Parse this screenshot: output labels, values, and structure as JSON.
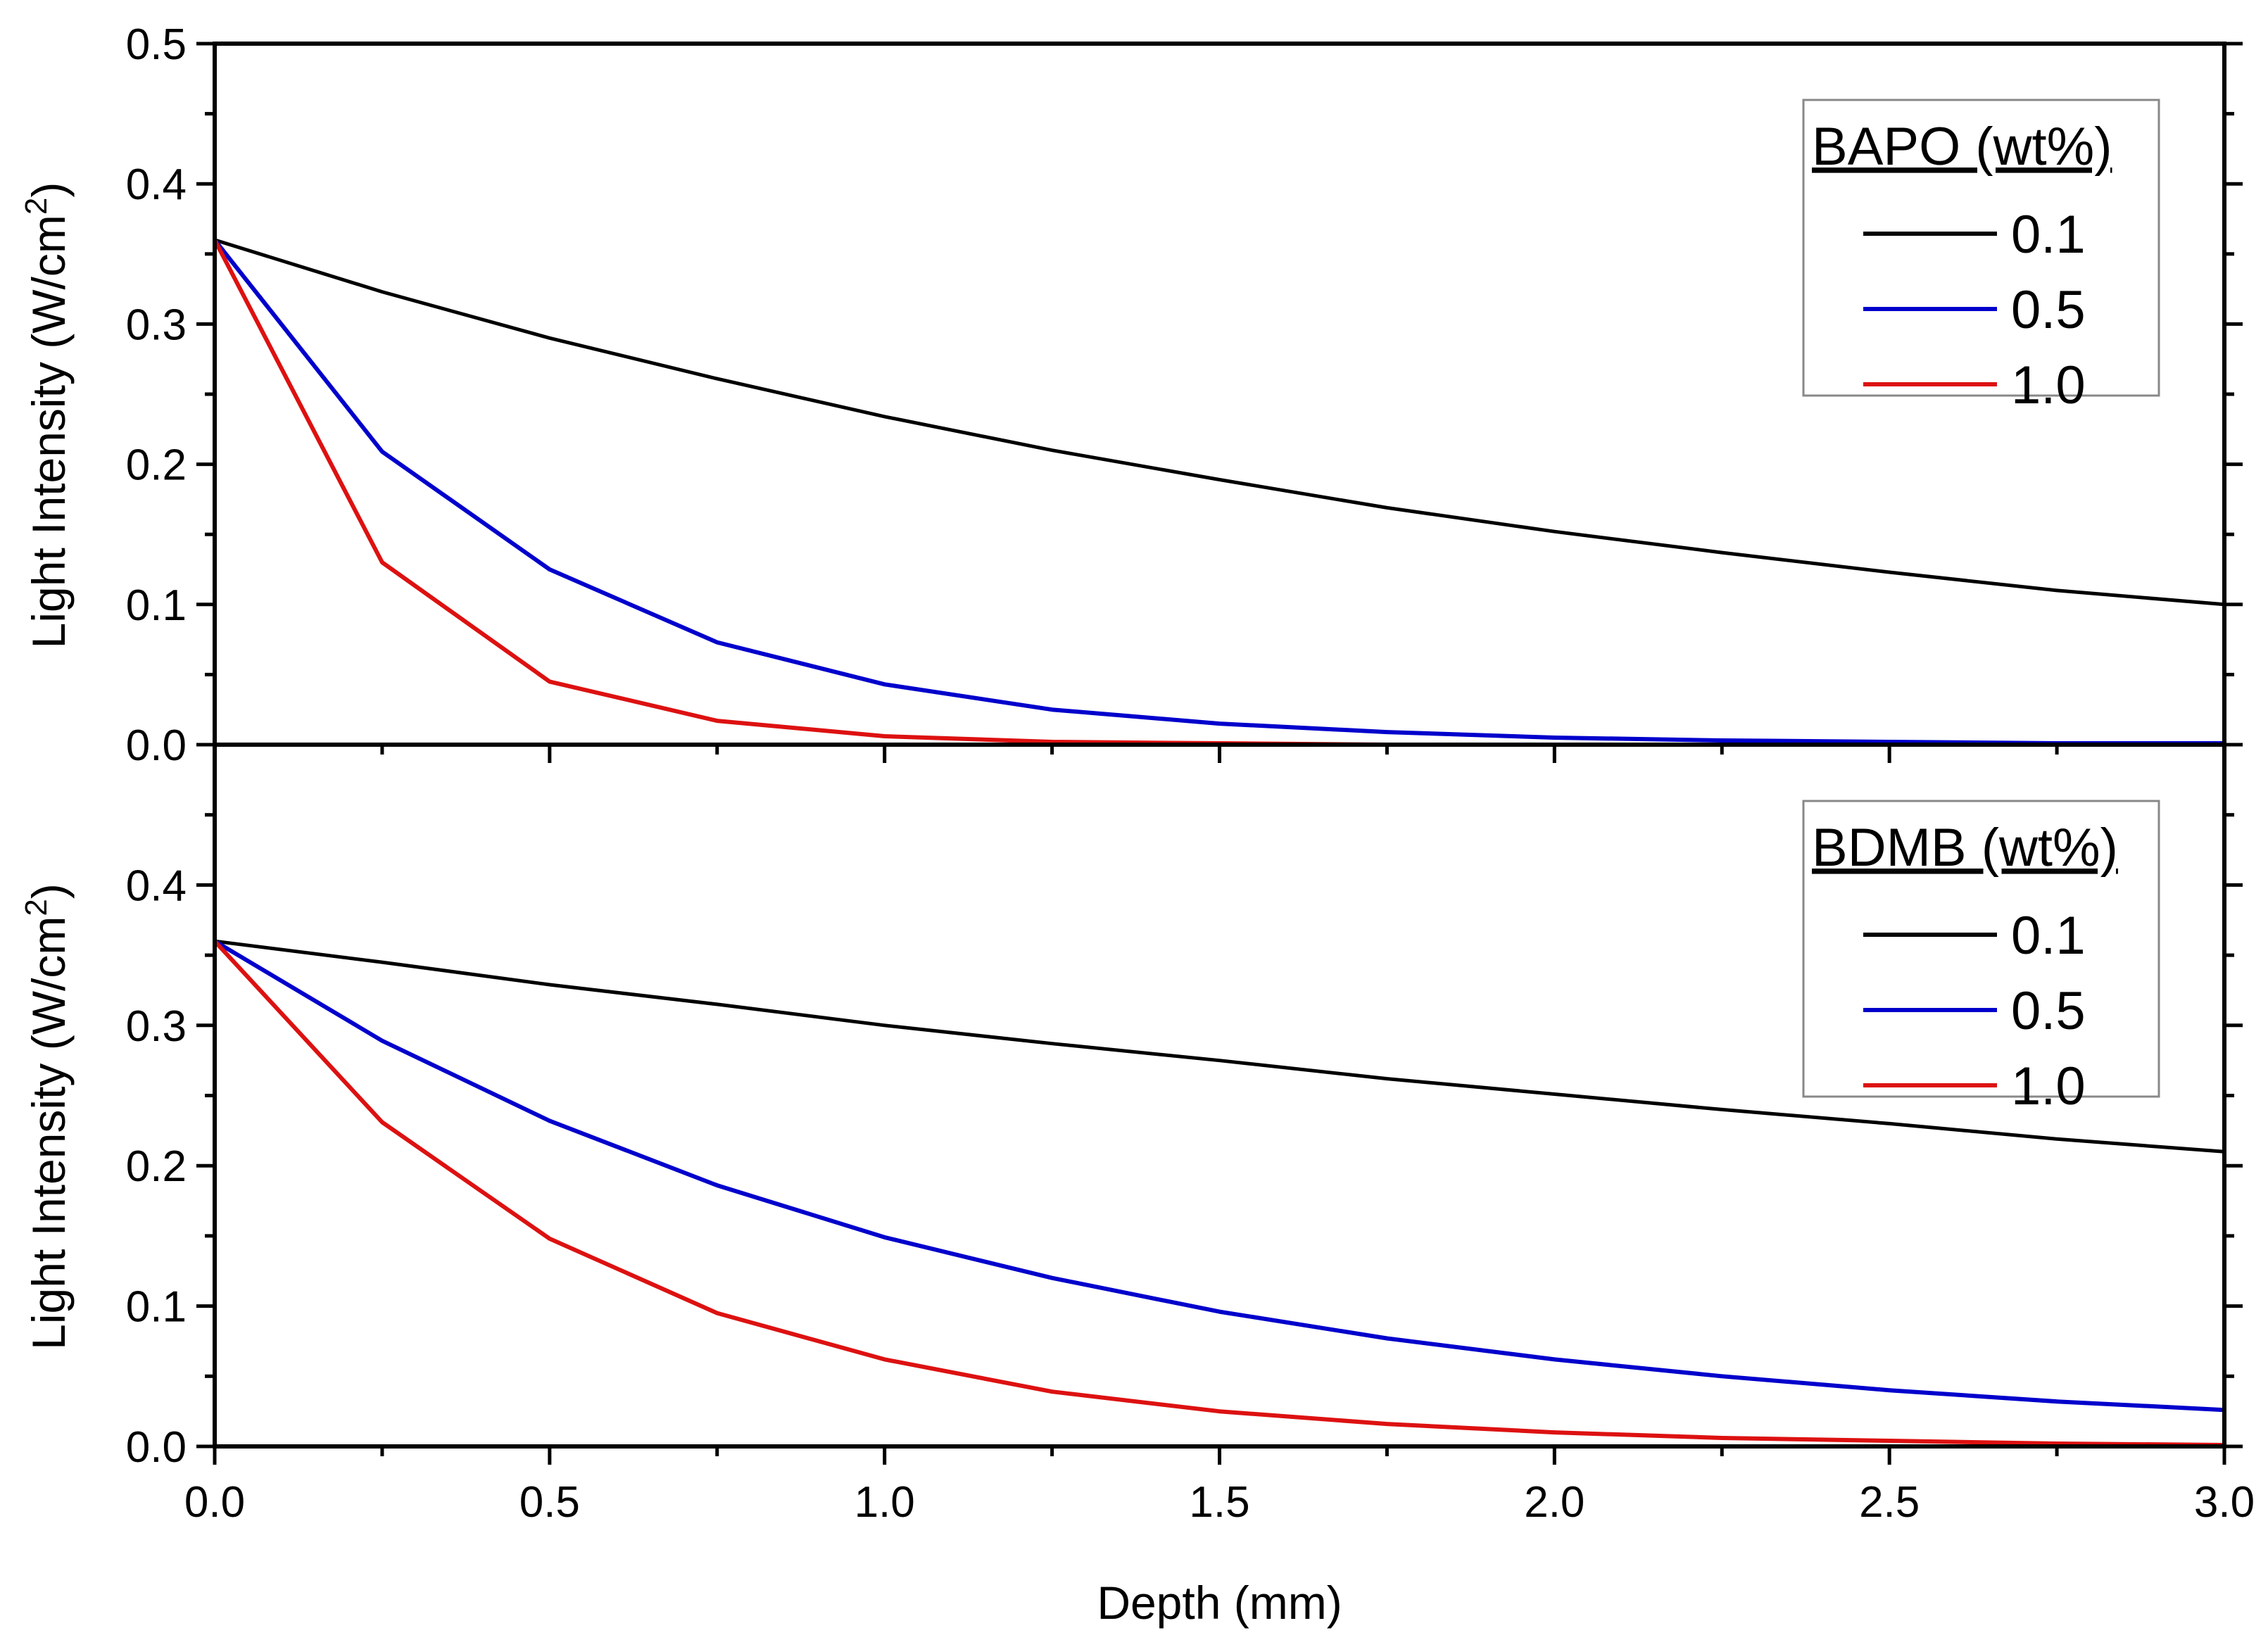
{
  "chart_data": [
    {
      "type": "line",
      "panel": "top",
      "ylabel_main": "Light Intensity (W/cm",
      "ylabel_sup": "2",
      "ylabel_close": ")",
      "xlim": [
        0,
        3.0
      ],
      "ylim": [
        0,
        0.5
      ],
      "yticks": [
        "0.0",
        "0.1",
        "0.2",
        "0.3",
        "0.4",
        "0.5"
      ],
      "legend": {
        "title": "BAPO (wt%)",
        "position": "top-right"
      },
      "x": [
        0.0,
        0.25,
        0.5,
        0.75,
        1.0,
        1.25,
        1.5,
        1.75,
        2.0,
        2.25,
        2.5,
        2.75,
        3.0
      ],
      "series": [
        {
          "name": "0.1",
          "color": "#000000",
          "values": [
            0.36,
            0.323,
            0.29,
            0.261,
            0.234,
            0.21,
            0.189,
            0.169,
            0.152,
            0.137,
            0.123,
            0.11,
            0.1
          ]
        },
        {
          "name": "0.5",
          "color": "#0000cc",
          "values": [
            0.36,
            0.209,
            0.125,
            0.073,
            0.043,
            0.025,
            0.015,
            0.009,
            0.005,
            0.003,
            0.002,
            0.001,
            0.001
          ]
        },
        {
          "name": "1.0",
          "color": "#dd1111",
          "values": [
            0.36,
            0.13,
            0.045,
            0.017,
            0.006,
            0.002,
            0.001,
            0.0,
            0.0,
            0.0,
            0.0,
            0.0,
            0.0
          ]
        }
      ]
    },
    {
      "type": "line",
      "panel": "bottom",
      "ylabel_main": "Light Intensity (W/cm",
      "ylabel_sup": "2",
      "ylabel_close": ")",
      "xlabel": "Depth (mm)",
      "xlim": [
        0,
        3.0
      ],
      "ylim": [
        0,
        0.5
      ],
      "xticks": [
        "0.0",
        "0.5",
        "1.0",
        "1.5",
        "2.0",
        "2.5",
        "3.0"
      ],
      "yticks": [
        "0.0",
        "0.1",
        "0.2",
        "0.3",
        "0.4"
      ],
      "legend": {
        "title": "BDMB (wt%)",
        "position": "top-right"
      },
      "x": [
        0.0,
        0.25,
        0.5,
        0.75,
        1.0,
        1.25,
        1.5,
        1.75,
        2.0,
        2.25,
        2.5,
        2.75,
        3.0
      ],
      "series": [
        {
          "name": "0.1",
          "color": "#000000",
          "values": [
            0.36,
            0.345,
            0.329,
            0.315,
            0.3,
            0.287,
            0.275,
            0.262,
            0.251,
            0.24,
            0.23,
            0.219,
            0.21
          ]
        },
        {
          "name": "0.5",
          "color": "#0000cc",
          "values": [
            0.36,
            0.289,
            0.232,
            0.186,
            0.149,
            0.12,
            0.096,
            0.077,
            0.062,
            0.05,
            0.04,
            0.032,
            0.026
          ]
        },
        {
          "name": "1.0",
          "color": "#dd1111",
          "values": [
            0.36,
            0.231,
            0.148,
            0.095,
            0.062,
            0.039,
            0.025,
            0.016,
            0.01,
            0.006,
            0.004,
            0.002,
            0.001
          ]
        }
      ]
    }
  ]
}
